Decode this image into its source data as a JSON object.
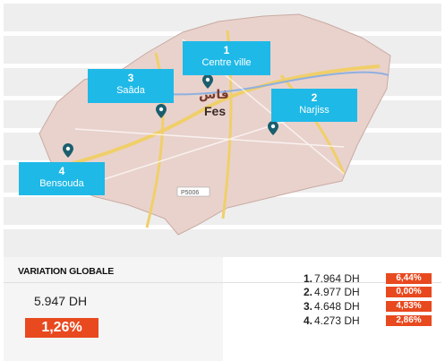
{
  "map": {
    "city_labels": {
      "arabic": "فاس",
      "latin": "Fes"
    },
    "road_label": "P5006",
    "districts": [
      {
        "rank": "1",
        "name": "Centre ville"
      },
      {
        "rank": "2",
        "name": "Narjiss"
      },
      {
        "rank": "3",
        "name": "Saâda"
      },
      {
        "rank": "4",
        "name": "Bensouda"
      }
    ],
    "colors": {
      "callout": "#1fb9e7",
      "marker": "#1a5e6e",
      "map_fill": "#e9d2cc",
      "road": "#f0cf6a",
      "river": "#8fb0e0"
    }
  },
  "summary": {
    "heading": "VARIATION GLOBALE",
    "average_price": "5.947 DH",
    "average_change": "1,26%",
    "accent_color": "#e8491f"
  },
  "ranking": [
    {
      "rank": "1.",
      "price": "7.964 DH",
      "change": "6,44%"
    },
    {
      "rank": "2.",
      "price": "4.977 DH",
      "change": "0,00%"
    },
    {
      "rank": "3.",
      "price": "4.648 DH",
      "change": "4,83%"
    },
    {
      "rank": "4.",
      "price": "4.273 DH",
      "change": "2,86%"
    }
  ]
}
